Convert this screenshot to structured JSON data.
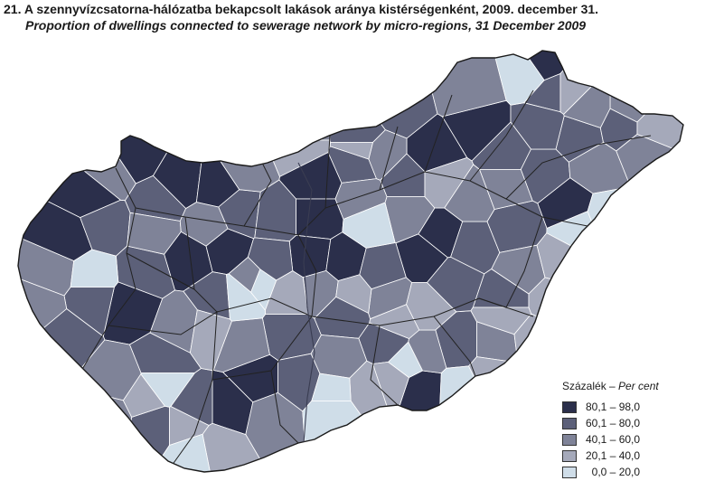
{
  "title": {
    "hu": "21. A szennyvízcsatorna-hálózatba bekapcsolt lakások aránya kistérségenként, 2009. december 31.",
    "en": "Proportion of dwellings connected to sewerage network by micro-regions, 31 December 2009"
  },
  "legend": {
    "title_hu": "Százalék",
    "separator": " – ",
    "title_en": "Per cent",
    "classes": [
      {
        "label": "80,1 – 98,0",
        "color": "#2b2f4b"
      },
      {
        "label": "60,1 – 80,0",
        "color": "#5c6079"
      },
      {
        "label": "40,1 – 60,0",
        "color": "#7f8398"
      },
      {
        "label": "20,1 – 40,0",
        "color": "#a5a9ba"
      },
      {
        "label": "  0,0 – 20,0",
        "color": "#cfdde8"
      }
    ]
  }
}
